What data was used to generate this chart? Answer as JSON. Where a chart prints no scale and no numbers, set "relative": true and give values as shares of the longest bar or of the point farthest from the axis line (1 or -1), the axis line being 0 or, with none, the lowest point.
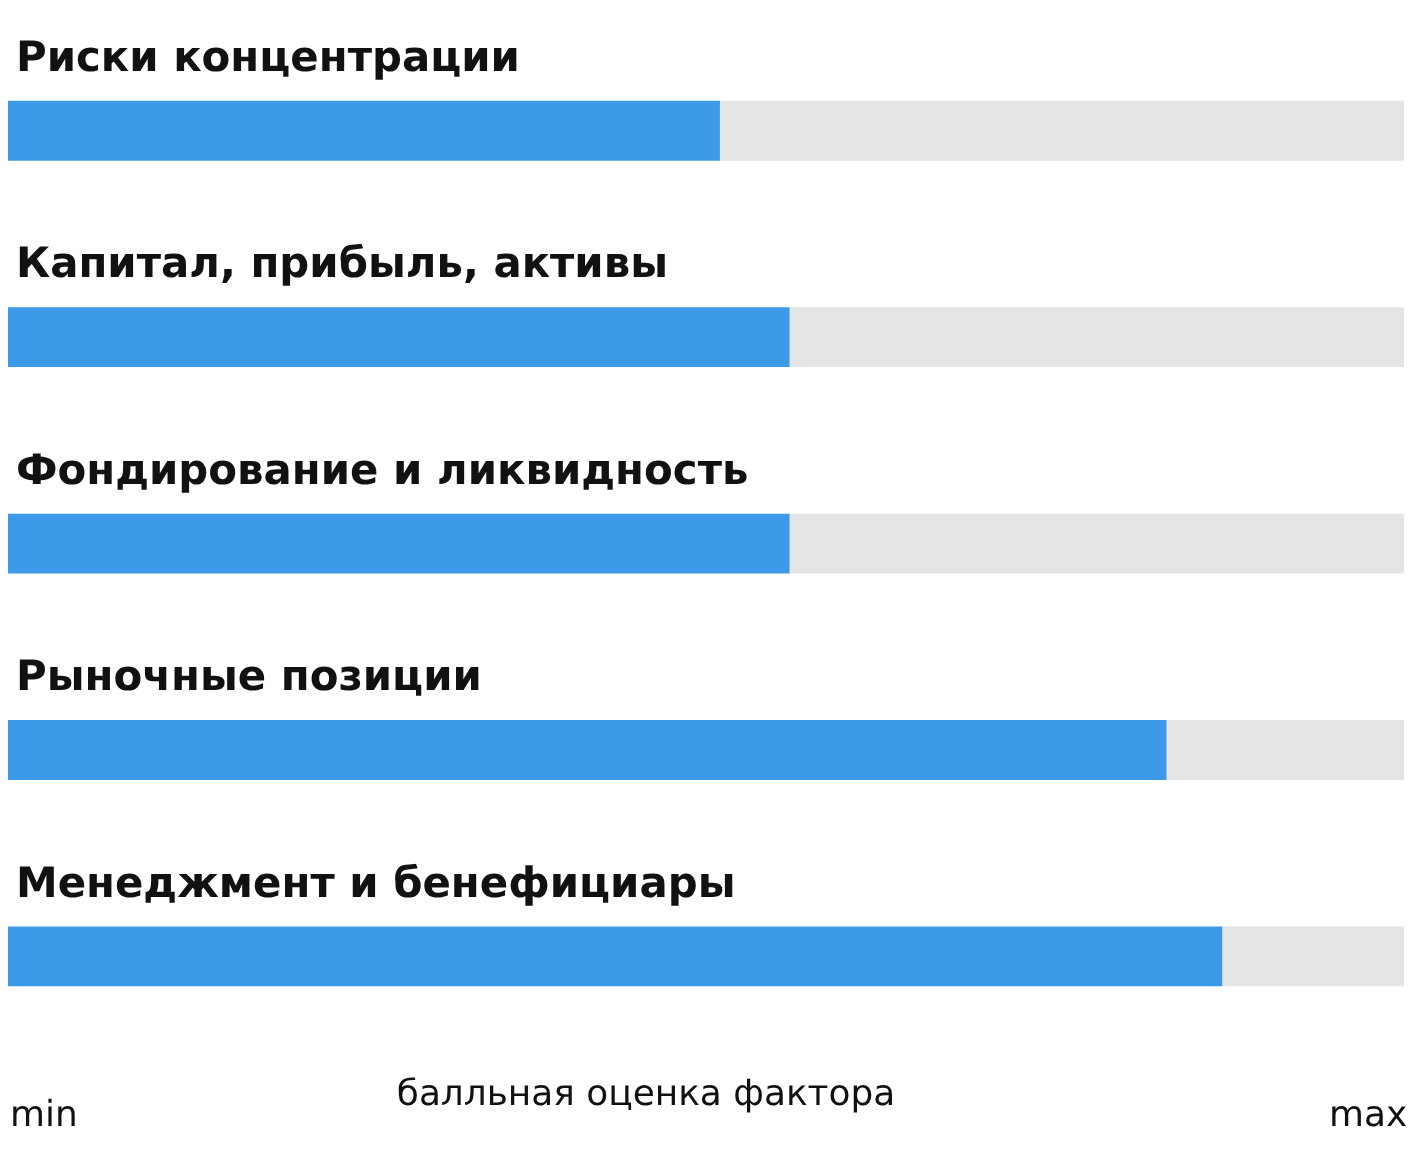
{
  "chart_data": {
    "type": "bar",
    "orientation": "horizontal",
    "stacked": true,
    "relative": true,
    "categories": [
      "Риски концентрации",
      "Капитал, прибыль, активы",
      "Фондирование и ликвидность",
      "Рыночные позиции",
      "Менеджмент и бенефициары"
    ],
    "series": [
      {
        "color": "#3d9ae8",
        "values": [
          0.51,
          0.56,
          0.56,
          0.83,
          0.87
        ]
      },
      {
        "color": "#e5e5e5",
        "values": [
          0.49,
          0.44,
          0.44,
          0.17,
          0.13
        ]
      }
    ],
    "xlabel": "балльная оценка фактора",
    "annotations": [
      "min",
      "max"
    ]
  }
}
